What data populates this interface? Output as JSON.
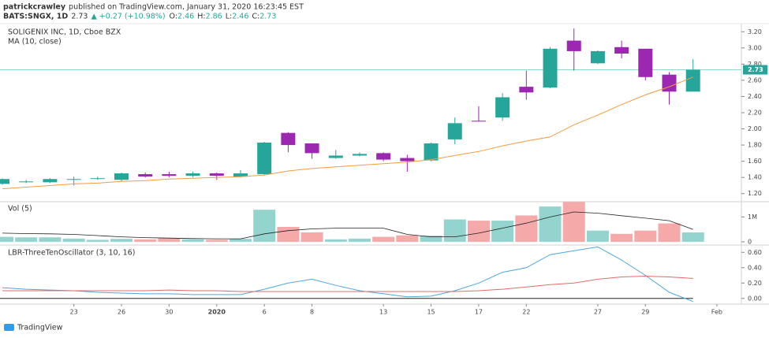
{
  "header": {
    "author": "patrickcrawley",
    "published": "published on TradingView.com, January 31, 2020 16:23:45 EST",
    "symbol": "BATS:SNGX, 1D",
    "last": "2.73",
    "change": "▲ +0.27 (+10.98%)",
    "ohlc": [
      {
        "label": "O:",
        "value": "2.46"
      },
      {
        "label": "H:",
        "value": "2.86"
      },
      {
        "label": "L:",
        "value": "2.46"
      },
      {
        "label": "C:",
        "value": "2.73"
      }
    ],
    "brand": "TradingView"
  },
  "chart_data": [
    {
      "type": "candlestick",
      "title": "SOLIGENIX INC, 1D, Cboe BZX",
      "open": [
        1.32,
        1.34,
        1.34,
        1.37,
        1.38,
        1.37,
        1.44,
        1.44,
        1.42,
        1.45,
        1.41,
        1.44,
        1.95,
        1.82,
        1.64,
        1.67,
        1.7,
        1.64,
        1.61,
        1.87,
        2.1,
        2.14,
        2.52,
        2.51,
        3.09,
        2.81,
        3.01,
        2.99,
        2.67,
        2.46
      ],
      "high": [
        1.39,
        1.37,
        1.39,
        1.41,
        1.41,
        1.46,
        1.46,
        1.47,
        1.47,
        1.46,
        1.49,
        1.84,
        1.96,
        1.82,
        1.74,
        1.71,
        1.71,
        1.68,
        1.83,
        2.14,
        2.28,
        2.44,
        2.72,
        3.01,
        3.24,
        2.97,
        3.09,
        2.99,
        2.7,
        2.86
      ],
      "low": [
        1.31,
        1.33,
        1.33,
        1.3,
        1.37,
        1.35,
        1.4,
        1.4,
        1.4,
        1.37,
        1.4,
        1.43,
        1.71,
        1.63,
        1.63,
        1.66,
        1.6,
        1.47,
        1.6,
        1.81,
        2.09,
        2.1,
        2.36,
        2.5,
        2.72,
        2.8,
        2.87,
        2.6,
        2.3,
        2.46
      ],
      "close": [
        1.38,
        1.35,
        1.38,
        1.38,
        1.39,
        1.45,
        1.41,
        1.42,
        1.45,
        1.42,
        1.45,
        1.83,
        1.8,
        1.7,
        1.67,
        1.69,
        1.62,
        1.6,
        1.82,
        2.07,
        2.09,
        2.39,
        2.45,
        2.99,
        2.96,
        2.96,
        2.93,
        2.64,
        2.46,
        2.73
      ],
      "up_color": "#26a69a",
      "down_color": "#9c27b0",
      "series": [
        {
          "name": "MA (10, close)",
          "color": "#f59b42",
          "values": [
            1.26,
            1.28,
            1.3,
            1.32,
            1.33,
            1.35,
            1.36,
            1.38,
            1.39,
            1.4,
            1.41,
            1.43,
            1.48,
            1.51,
            1.53,
            1.55,
            1.57,
            1.59,
            1.62,
            1.67,
            1.72,
            1.79,
            1.85,
            1.9,
            2.05,
            2.17,
            2.3,
            2.42,
            2.52,
            2.64
          ]
        }
      ],
      "ylim": [
        1.1,
        3.3
      ],
      "yticks": [
        {
          "value": 1.2,
          "label": "1.20"
        },
        {
          "value": 1.4,
          "label": "1.40"
        },
        {
          "value": 1.6,
          "label": "1.60"
        },
        {
          "value": 1.8,
          "label": "1.80"
        },
        {
          "value": 2.0,
          "label": "2.00"
        },
        {
          "value": 2.2,
          "label": "2.20"
        },
        {
          "value": 2.4,
          "label": "2.40"
        },
        {
          "value": 2.6,
          "label": "2.60"
        },
        {
          "value": 2.8,
          "label": "2.80"
        },
        {
          "value": 3.0,
          "label": "3.00"
        },
        {
          "value": 3.2,
          "label": "3.20"
        }
      ],
      "xlim": [
        -0.1,
        31.03
      ]
    },
    {
      "type": "bar",
      "title": "Vol (5)",
      "values": [
        200000,
        180000,
        180000,
        130000,
        80000,
        120000,
        100000,
        150000,
        100000,
        80000,
        120000,
        1290000,
        600000,
        380000,
        100000,
        130000,
        200000,
        260000,
        250000,
        900000,
        850000,
        850000,
        1060000,
        1420000,
        1600000,
        450000,
        320000,
        450000,
        740000,
        380000
      ],
      "up_color": "#93d5ce",
      "down_color": "#f6a9a9",
      "ma_color": "#222222",
      "ma_values": [
        350000,
        330000,
        320000,
        300000,
        250000,
        200000,
        170000,
        150000,
        130000,
        120000,
        120000,
        320000,
        450000,
        520000,
        550000,
        550000,
        550000,
        300000,
        200000,
        200000,
        350000,
        550000,
        750000,
        1000000,
        1200000,
        1150000,
        1050000,
        950000,
        850000,
        500000
      ],
      "ylim": [
        -129000,
        1613000
      ],
      "yticks": [
        0,
        {
          "value": 1000000,
          "label": "1M"
        }
      ],
      "xlim": [
        -0.1,
        31.03
      ]
    },
    {
      "type": "line",
      "title": "LBR-ThreeTenOscillator (3, 10, 16)",
      "series": [
        {
          "color": "#4ea6df",
          "values": [
            0.14,
            0.12,
            0.11,
            0.1,
            0.08,
            0.07,
            0.06,
            0.06,
            0.05,
            0.05,
            0.05,
            0.12,
            0.2,
            0.25,
            0.17,
            0.1,
            0.06,
            0.02,
            0.03,
            0.1,
            0.2,
            0.34,
            0.4,
            0.57,
            0.62,
            0.67,
            0.5,
            0.3,
            0.08,
            -0.04
          ]
        },
        {
          "color": "#e06b6b",
          "values": [
            0.1,
            0.1,
            0.1,
            0.1,
            0.1,
            0.1,
            0.1,
            0.11,
            0.1,
            0.1,
            0.09,
            0.09,
            0.09,
            0.09,
            0.09,
            0.09,
            0.09,
            0.09,
            0.09,
            0.09,
            0.1,
            0.12,
            0.15,
            0.18,
            0.2,
            0.25,
            0.28,
            0.29,
            0.28,
            0.26
          ]
        }
      ],
      "zero_color": "#222222",
      "ylim": [
        -0.074,
        0.695
      ],
      "yticks": [
        {
          "value": 0,
          "label": "0.00"
        },
        {
          "value": 0.2,
          "label": "0.20"
        },
        {
          "value": 0.4,
          "label": "0.40"
        },
        {
          "value": 0.6,
          "label": "0.60"
        }
      ],
      "xlim": [
        -0.1,
        31.03
      ],
      "xticks": [
        {
          "value": 3,
          "label": "23"
        },
        {
          "value": 5,
          "label": "26"
        },
        {
          "value": 7,
          "label": "30"
        },
        {
          "value": 9,
          "label": "2020"
        },
        {
          "value": 11,
          "label": "6"
        },
        {
          "value": 13,
          "label": "8"
        },
        {
          "value": 16,
          "label": "13"
        },
        {
          "value": 18,
          "label": "15"
        },
        {
          "value": 20,
          "label": "17"
        },
        {
          "value": 22,
          "label": "22"
        },
        {
          "value": 25,
          "label": "27"
        },
        {
          "value": 27,
          "label": "29"
        },
        {
          "value": 30,
          "label": "Feb"
        }
      ]
    }
  ]
}
